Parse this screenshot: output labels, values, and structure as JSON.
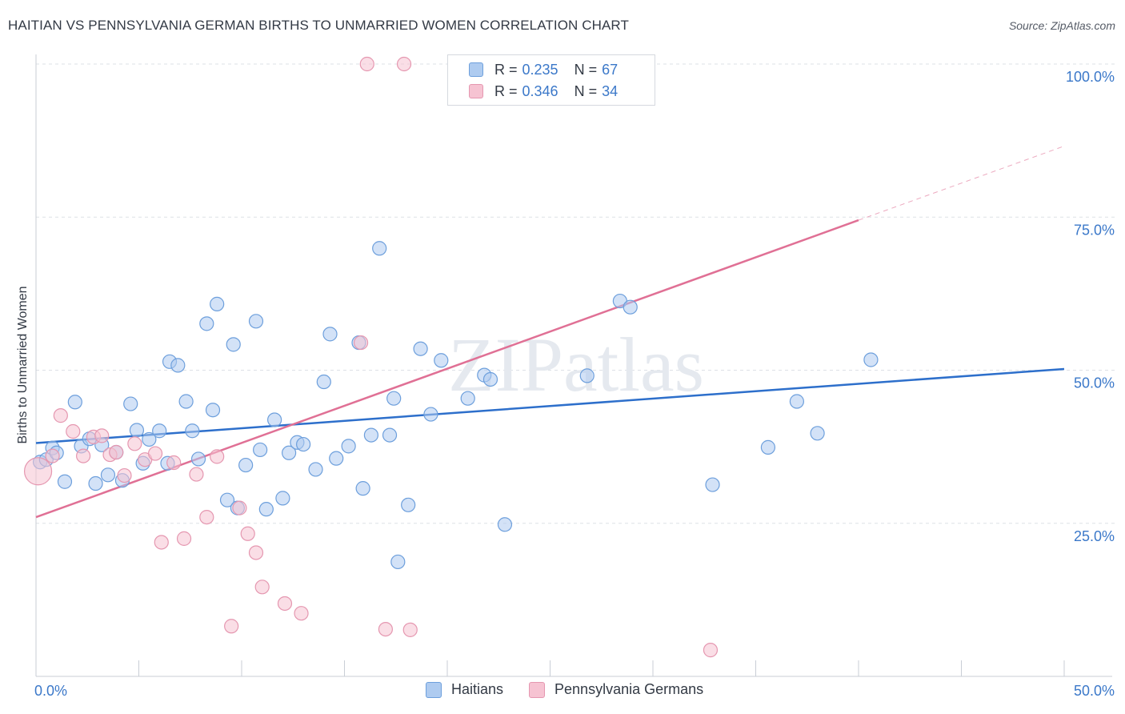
{
  "title": "HAITIAN VS PENNSYLVANIA GERMAN BIRTHS TO UNMARRIED WOMEN CORRELATION CHART",
  "source": "Source: ZipAtlas.com",
  "watermark": "ZIPatlas",
  "colors": {
    "blue_fill": "#aecbf0",
    "blue_stroke": "#6d9fdc",
    "blue_line": "#2d6fcb",
    "pink_fill": "#f6c3d2",
    "pink_stroke": "#e597b0",
    "pink_line": "#e07095",
    "axis_text": "#3b78c9",
    "grid": "#dde1e6"
  },
  "legend": {
    "rows": [
      {
        "r_label": "R =",
        "r_value": "0.235",
        "n_label": "N =",
        "n_value": "67"
      },
      {
        "r_label": "R =",
        "r_value": "0.346",
        "n_label": "N =",
        "n_value": "34"
      }
    ]
  },
  "bottom_legend": {
    "haitians": "Haitians",
    "pa_germans": "Pennsylvania Germans"
  },
  "chart_data": {
    "type": "scatter",
    "title": "HAITIAN VS PENNSYLVANIA GERMAN BIRTHS TO UNMARRIED WOMEN CORRELATION CHART",
    "xlabel": "",
    "ylabel": "Births to Unmarried Women",
    "xlim": [
      0,
      50
    ],
    "ylim": [
      0,
      100
    ],
    "x_tick_labels": [
      "0.0%",
      "50.0%"
    ],
    "y_ticks": [
      25,
      50,
      75,
      100
    ],
    "y_tick_labels": [
      "25.0%",
      "50.0%",
      "75.0%",
      "100.0%"
    ],
    "grid": true,
    "legend_position": "top-center",
    "series": [
      {
        "name": "Haitians",
        "R": 0.235,
        "N": 67,
        "trend": {
          "x": [
            0,
            50
          ],
          "y": [
            38.1,
            50.2
          ]
        },
        "points": [
          [
            0.2,
            35.0
          ],
          [
            0.5,
            35.4
          ],
          [
            0.8,
            37.3
          ],
          [
            1.0,
            36.5
          ],
          [
            1.4,
            31.8
          ],
          [
            1.9,
            44.8
          ],
          [
            2.2,
            37.6
          ],
          [
            2.6,
            38.8
          ],
          [
            2.9,
            31.5
          ],
          [
            3.2,
            37.8
          ],
          [
            3.5,
            32.9
          ],
          [
            3.9,
            36.6
          ],
          [
            4.2,
            32.0
          ],
          [
            4.6,
            44.5
          ],
          [
            4.9,
            40.2
          ],
          [
            5.2,
            34.8
          ],
          [
            5.5,
            38.7
          ],
          [
            6.0,
            40.1
          ],
          [
            6.4,
            34.8
          ],
          [
            6.5,
            51.4
          ],
          [
            6.9,
            50.8
          ],
          [
            7.3,
            44.9
          ],
          [
            7.6,
            40.1
          ],
          [
            7.9,
            35.5
          ],
          [
            8.3,
            57.6
          ],
          [
            8.6,
            43.5
          ],
          [
            8.8,
            60.8
          ],
          [
            9.3,
            28.8
          ],
          [
            9.6,
            54.2
          ],
          [
            9.8,
            27.5
          ],
          [
            10.2,
            34.5
          ],
          [
            10.7,
            58.0
          ],
          [
            10.9,
            37.0
          ],
          [
            11.2,
            27.3
          ],
          [
            11.6,
            41.9
          ],
          [
            12.0,
            29.1
          ],
          [
            12.3,
            36.5
          ],
          [
            12.7,
            38.2
          ],
          [
            13.0,
            37.9
          ],
          [
            13.6,
            33.8
          ],
          [
            14.0,
            48.1
          ],
          [
            14.3,
            55.9
          ],
          [
            14.6,
            35.6
          ],
          [
            15.2,
            37.6
          ],
          [
            15.7,
            54.5
          ],
          [
            15.9,
            30.7
          ],
          [
            16.3,
            39.4
          ],
          [
            16.7,
            69.9
          ],
          [
            17.2,
            39.4
          ],
          [
            17.4,
            45.4
          ],
          [
            17.6,
            18.7
          ],
          [
            18.1,
            28.0
          ],
          [
            18.7,
            53.5
          ],
          [
            19.2,
            42.8
          ],
          [
            19.7,
            51.6
          ],
          [
            21.0,
            45.4
          ],
          [
            21.8,
            49.2
          ],
          [
            22.1,
            48.5
          ],
          [
            22.8,
            24.8
          ],
          [
            26.8,
            49.1
          ],
          [
            28.4,
            61.3
          ],
          [
            28.9,
            60.3
          ],
          [
            32.9,
            31.3
          ],
          [
            35.6,
            37.4
          ],
          [
            37.0,
            44.9
          ],
          [
            38.0,
            39.7
          ],
          [
            40.6,
            51.7
          ]
        ]
      },
      {
        "name": "Pennsylvania Germans",
        "R": 0.346,
        "N": 34,
        "trend": {
          "x": [
            0,
            40
          ],
          "y": [
            26.0,
            74.5
          ],
          "dashed_to": {
            "x": 50,
            "y": 86.6
          }
        },
        "points": [
          [
            0.1,
            33.5
          ],
          [
            0.8,
            36.0
          ],
          [
            1.2,
            42.6
          ],
          [
            1.8,
            40.0
          ],
          [
            2.3,
            36.0
          ],
          [
            2.8,
            39.1
          ],
          [
            3.2,
            39.3
          ],
          [
            3.6,
            36.2
          ],
          [
            3.9,
            36.6
          ],
          [
            4.3,
            32.8
          ],
          [
            4.8,
            38.0
          ],
          [
            5.3,
            35.4
          ],
          [
            5.8,
            36.4
          ],
          [
            6.1,
            21.9
          ],
          [
            6.7,
            34.9
          ],
          [
            7.2,
            22.5
          ],
          [
            7.8,
            33.0
          ],
          [
            8.3,
            26.0
          ],
          [
            8.8,
            35.9
          ],
          [
            9.5,
            8.2
          ],
          [
            9.9,
            27.5
          ],
          [
            10.3,
            23.3
          ],
          [
            10.7,
            20.2
          ],
          [
            11.0,
            14.6
          ],
          [
            12.1,
            11.9
          ],
          [
            12.9,
            10.3
          ],
          [
            15.8,
            54.5
          ],
          [
            16.1,
            100.0
          ],
          [
            17.0,
            7.7
          ],
          [
            17.9,
            100.0
          ],
          [
            18.2,
            7.6
          ],
          [
            27.2,
            100.0
          ],
          [
            28.9,
            100.0
          ],
          [
            32.8,
            4.3
          ]
        ]
      }
    ]
  }
}
